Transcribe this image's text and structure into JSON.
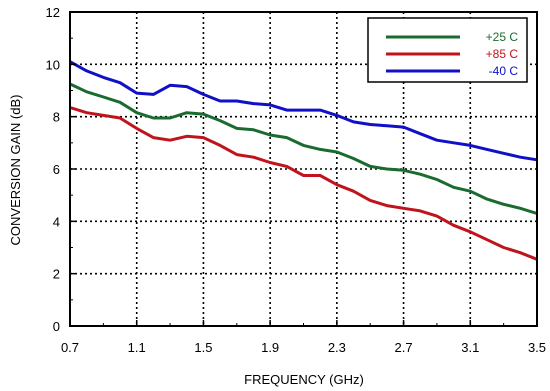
{
  "chart_data": {
    "type": "line",
    "title": "",
    "xlabel": "FREQUENCY (GHz)",
    "ylabel": "CONVERSION GAIN (dB)",
    "xlim": [
      0.7,
      3.5
    ],
    "ylim": [
      0,
      12
    ],
    "xticks": [
      0.7,
      1.1,
      1.5,
      1.9,
      2.3,
      2.7,
      3.1,
      3.5
    ],
    "xtick_labels": [
      "0.7",
      "1.1",
      "1.5",
      "1.9",
      "2.3",
      "2.7",
      "3.1",
      "3.5"
    ],
    "yticks": [
      0,
      2,
      4,
      6,
      8,
      10,
      12
    ],
    "ytick_labels": [
      "0",
      "2",
      "4",
      "6",
      "8",
      "10",
      "12"
    ],
    "grid": "dotted",
    "legend_position": "top-right",
    "series": [
      {
        "name": "+25 C",
        "color": "#1a6b2e",
        "x": [
          0.7,
          0.8,
          0.9,
          1.0,
          1.1,
          1.2,
          1.3,
          1.4,
          1.5,
          1.6,
          1.7,
          1.8,
          1.9,
          2.0,
          2.1,
          2.2,
          2.3,
          2.4,
          2.5,
          2.6,
          2.7,
          2.8,
          2.9,
          3.0,
          3.1,
          3.2,
          3.3,
          3.4,
          3.5
        ],
        "y": [
          9.25,
          8.95,
          8.75,
          8.55,
          8.15,
          7.95,
          7.95,
          8.15,
          8.1,
          7.85,
          7.55,
          7.5,
          7.3,
          7.2,
          6.9,
          6.75,
          6.65,
          6.4,
          6.1,
          6.0,
          5.95,
          5.8,
          5.6,
          5.3,
          5.15,
          4.85,
          4.65,
          4.5,
          4.3
        ]
      },
      {
        "name": "+85 C",
        "color": "#c0141c",
        "x": [
          0.7,
          0.8,
          0.9,
          1.0,
          1.1,
          1.2,
          1.3,
          1.4,
          1.5,
          1.6,
          1.7,
          1.8,
          1.9,
          2.0,
          2.1,
          2.2,
          2.3,
          2.4,
          2.5,
          2.6,
          2.7,
          2.8,
          2.9,
          3.0,
          3.1,
          3.2,
          3.3,
          3.4,
          3.5
        ],
        "y": [
          8.35,
          8.15,
          8.05,
          7.95,
          7.55,
          7.2,
          7.1,
          7.25,
          7.2,
          6.9,
          6.55,
          6.45,
          6.25,
          6.1,
          5.75,
          5.75,
          5.4,
          5.15,
          4.8,
          4.6,
          4.5,
          4.4,
          4.2,
          3.85,
          3.6,
          3.3,
          3.0,
          2.8,
          2.55
        ]
      },
      {
        "name": "-40 C",
        "color": "#1010c8",
        "x": [
          0.7,
          0.8,
          0.9,
          1.0,
          1.1,
          1.2,
          1.3,
          1.4,
          1.5,
          1.6,
          1.7,
          1.8,
          1.9,
          2.0,
          2.1,
          2.2,
          2.3,
          2.4,
          2.5,
          2.6,
          2.7,
          2.8,
          2.9,
          3.0,
          3.1,
          3.2,
          3.3,
          3.4,
          3.5
        ],
        "y": [
          10.1,
          9.75,
          9.5,
          9.3,
          8.9,
          8.85,
          9.2,
          9.15,
          8.85,
          8.6,
          8.6,
          8.5,
          8.45,
          8.25,
          8.25,
          8.25,
          8.05,
          7.8,
          7.7,
          7.65,
          7.6,
          7.35,
          7.1,
          7.0,
          6.9,
          6.75,
          6.6,
          6.45,
          6.35
        ]
      }
    ]
  }
}
